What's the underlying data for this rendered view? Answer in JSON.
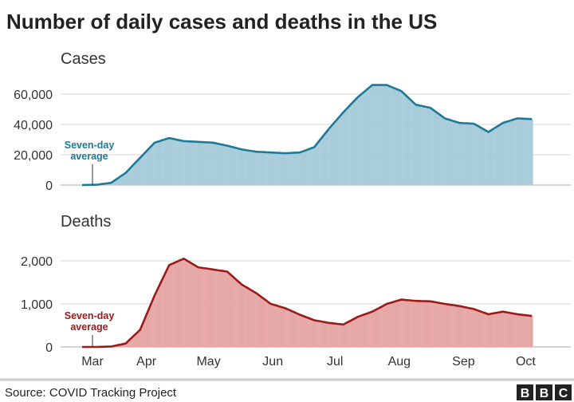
{
  "title": "Number of daily cases and deaths in the US",
  "source": "Source: COVID Tracking Project",
  "logo": "BBC",
  "colors": {
    "cases_bar": "#a8ccd9",
    "cases_line": "#1c7a98",
    "deaths_bar": "#e6a7a7",
    "deaths_line": "#9b1b1b"
  },
  "chart_data": [
    {
      "type": "area",
      "title": "Cases",
      "annotation": [
        "Seven-day",
        "average"
      ],
      "yticks": [
        0,
        20000,
        40000,
        60000
      ],
      "ytick_labels": [
        "0",
        "20,000",
        "40,000",
        "60,000"
      ],
      "ylim": [
        0,
        72000
      ],
      "grid": true,
      "x": [
        "2020-03-01",
        "2020-03-08",
        "2020-03-15",
        "2020-03-22",
        "2020-03-29",
        "2020-04-05",
        "2020-04-12",
        "2020-04-19",
        "2020-04-26",
        "2020-05-03",
        "2020-05-10",
        "2020-05-17",
        "2020-05-24",
        "2020-05-31",
        "2020-06-07",
        "2020-06-14",
        "2020-06-21",
        "2020-06-28",
        "2020-07-05",
        "2020-07-12",
        "2020-07-19",
        "2020-07-26",
        "2020-08-02",
        "2020-08-09",
        "2020-08-16",
        "2020-08-23",
        "2020-08-30",
        "2020-09-06",
        "2020-09-13",
        "2020-09-20",
        "2020-09-27",
        "2020-10-04"
      ],
      "series": [
        {
          "name": "Seven-day average",
          "values": [
            0,
            200,
            1500,
            8000,
            18000,
            28000,
            31000,
            29000,
            28500,
            28000,
            26000,
            23500,
            22000,
            21500,
            21000,
            21500,
            25000,
            37000,
            48000,
            58000,
            66000,
            66000,
            62000,
            53000,
            51000,
            44000,
            41000,
            40500,
            35000,
            41000,
            44000,
            43500
          ]
        }
      ]
    },
    {
      "type": "area",
      "title": "Deaths",
      "annotation": [
        "Seven-day",
        "average"
      ],
      "yticks": [
        0,
        1000,
        2000
      ],
      "ytick_labels": [
        "0",
        "1,000",
        "2,000"
      ],
      "ylim": [
        0,
        2600
      ],
      "grid": true,
      "x_tick_labels": [
        "Mar",
        "Apr",
        "May",
        "Jun",
        "Jul",
        "Aug",
        "Sep",
        "Oct"
      ],
      "x_ticks": [
        "2020-03-01",
        "2020-04-01",
        "2020-05-01",
        "2020-06-01",
        "2020-07-01",
        "2020-08-01",
        "2020-09-01",
        "2020-10-01"
      ],
      "x": [
        "2020-03-01",
        "2020-03-08",
        "2020-03-15",
        "2020-03-22",
        "2020-03-29",
        "2020-04-05",
        "2020-04-12",
        "2020-04-19",
        "2020-04-26",
        "2020-05-03",
        "2020-05-10",
        "2020-05-17",
        "2020-05-24",
        "2020-05-31",
        "2020-06-07",
        "2020-06-14",
        "2020-06-21",
        "2020-06-28",
        "2020-07-05",
        "2020-07-12",
        "2020-07-19",
        "2020-07-26",
        "2020-08-02",
        "2020-08-09",
        "2020-08-16",
        "2020-08-23",
        "2020-08-30",
        "2020-09-06",
        "2020-09-13",
        "2020-09-20",
        "2020-09-27",
        "2020-10-04"
      ],
      "series": [
        {
          "name": "Seven-day average",
          "values": [
            0,
            0,
            10,
            80,
            400,
            1200,
            1900,
            2050,
            1850,
            1800,
            1750,
            1450,
            1250,
            1000,
            900,
            750,
            620,
            560,
            520,
            700,
            820,
            1000,
            1100,
            1070,
            1060,
            1000,
            950,
            880,
            760,
            820,
            760,
            720
          ]
        }
      ]
    }
  ]
}
